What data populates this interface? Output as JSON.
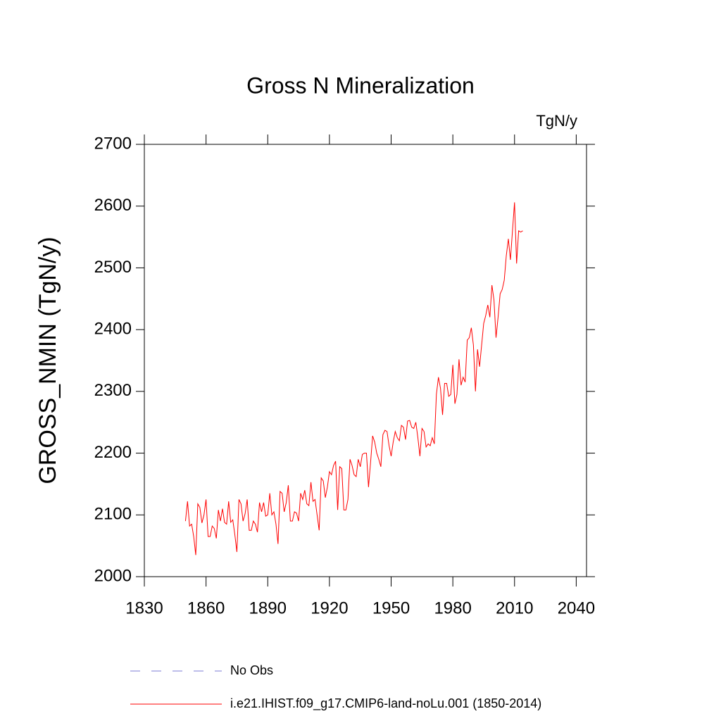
{
  "chart_data": {
    "type": "line",
    "title": "Gross N Mineralization",
    "units": "TgN/y",
    "y_label": "GROSS_NMIN  (TgN/y)",
    "xlim": [
      1830,
      2045
    ],
    "xticks": [
      1830,
      1860,
      1890,
      1920,
      1950,
      1980,
      2010,
      2040
    ],
    "ylim": [
      2000,
      2700
    ],
    "yticks": [
      2000,
      2100,
      2200,
      2300,
      2400,
      2500,
      2600,
      2700
    ],
    "x": [
      1850,
      1851,
      1852,
      1853,
      1854,
      1855,
      1856,
      1857,
      1858,
      1859,
      1860,
      1861,
      1862,
      1863,
      1864,
      1865,
      1866,
      1867,
      1868,
      1869,
      1870,
      1871,
      1872,
      1873,
      1874,
      1875,
      1876,
      1877,
      1878,
      1879,
      1880,
      1881,
      1882,
      1883,
      1884,
      1885,
      1886,
      1887,
      1888,
      1889,
      1890,
      1891,
      1892,
      1893,
      1894,
      1895,
      1896,
      1897,
      1898,
      1899,
      1900,
      1901,
      1902,
      1903,
      1904,
      1905,
      1906,
      1907,
      1908,
      1909,
      1910,
      1911,
      1912,
      1913,
      1914,
      1915,
      1916,
      1917,
      1918,
      1919,
      1920,
      1921,
      1922,
      1923,
      1924,
      1925,
      1926,
      1927,
      1928,
      1929,
      1930,
      1931,
      1932,
      1933,
      1934,
      1935,
      1936,
      1937,
      1938,
      1939,
      1940,
      1941,
      1942,
      1943,
      1944,
      1945,
      1946,
      1947,
      1948,
      1949,
      1950,
      1951,
      1952,
      1953,
      1954,
      1955,
      1956,
      1957,
      1958,
      1959,
      1960,
      1961,
      1962,
      1963,
      1964,
      1965,
      1966,
      1967,
      1968,
      1969,
      1970,
      1971,
      1972,
      1973,
      1974,
      1975,
      1976,
      1977,
      1978,
      1979,
      1980,
      1981,
      1982,
      1983,
      1984,
      1985,
      1986,
      1987,
      1988,
      1989,
      1990,
      1991,
      1992,
      1993,
      1994,
      1995,
      1996,
      1997,
      1998,
      1999,
      2000,
      2001,
      2002,
      2003,
      2004,
      2005,
      2006,
      2007,
      2008,
      2009,
      2010,
      2011,
      2012,
      2013,
      2014
    ],
    "series": [
      {
        "name": "i.e21.IHIST.f09_g17.CMIP6-land-noLu.001 (1850-2014)",
        "color": "#ff0000",
        "values": [
          2090,
          2122,
          2082,
          2085,
          2065,
          2035,
          2118,
          2112,
          2087,
          2100,
          2125,
          2065,
          2065,
          2082,
          2078,
          2062,
          2108,
          2090,
          2110,
          2088,
          2085,
          2122,
          2088,
          2092,
          2068,
          2040,
          2125,
          2118,
          2090,
          2102,
          2125,
          2075,
          2075,
          2090,
          2085,
          2072,
          2120,
          2105,
          2120,
          2098,
          2100,
          2135,
          2100,
          2105,
          2085,
          2053,
          2138,
          2135,
          2105,
          2120,
          2148,
          2090,
          2090,
          2105,
          2103,
          2090,
          2135,
          2125,
          2140,
          2118,
          2115,
          2153,
          2122,
          2125,
          2100,
          2075,
          2160,
          2155,
          2128,
          2145,
          2170,
          2165,
          2180,
          2187,
          2108,
          2178,
          2175,
          2108,
          2108,
          2125,
          2190,
          2180,
          2165,
          2162,
          2190,
          2178,
          2198,
          2200,
          2200,
          2145,
          2185,
          2228,
          2218,
          2200,
          2190,
          2178,
          2230,
          2237,
          2235,
          2212,
          2195,
          2218,
          2235,
          2225,
          2220,
          2245,
          2242,
          2222,
          2252,
          2253,
          2242,
          2240,
          2250,
          2225,
          2195,
          2240,
          2235,
          2210,
          2215,
          2212,
          2225,
          2215,
          2295,
          2323,
          2305,
          2262,
          2313,
          2313,
          2292,
          2295,
          2343,
          2280,
          2295,
          2352,
          2310,
          2323,
          2315,
          2383,
          2387,
          2403,
          2375,
          2300,
          2368,
          2340,
          2375,
          2410,
          2423,
          2440,
          2420,
          2472,
          2448,
          2387,
          2420,
          2458,
          2465,
          2480,
          2520,
          2547,
          2513,
          2560,
          2606,
          2507,
          2560,
          2558,
          2560
        ]
      }
    ],
    "legend_extra": [
      {
        "name": "No Obs",
        "color": "#7b7bd6",
        "dash": "dashed"
      }
    ]
  }
}
